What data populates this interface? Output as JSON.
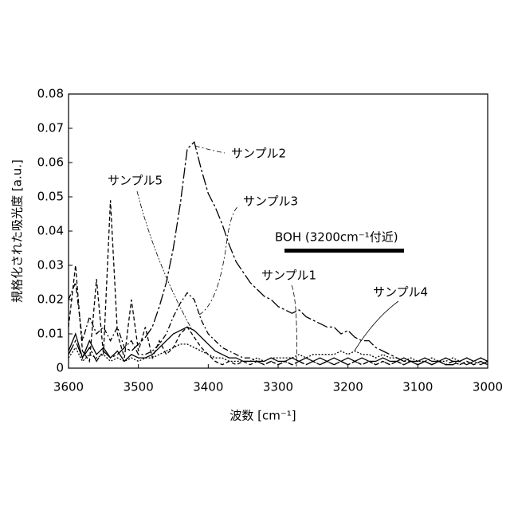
{
  "chart_data": {
    "type": "line",
    "xlabel": "波数 [cm⁻¹]",
    "ylabel": "規格化された吸光度 [a.u.]",
    "annotation": "BOH (3200cm⁻¹付近)",
    "xlim": [
      3600,
      3000
    ],
    "xticks": [
      3600,
      3500,
      3400,
      3300,
      3200,
      3100,
      3000
    ],
    "ylim": [
      0,
      0.08
    ],
    "yticks": [
      0,
      0.01,
      0.02,
      0.03,
      0.04,
      0.05,
      0.06,
      0.07,
      0.08
    ],
    "x": [
      3600,
      3590,
      3580,
      3570,
      3560,
      3550,
      3540,
      3530,
      3520,
      3510,
      3500,
      3490,
      3480,
      3470,
      3460,
      3450,
      3440,
      3430,
      3420,
      3410,
      3400,
      3390,
      3380,
      3370,
      3360,
      3350,
      3340,
      3330,
      3320,
      3310,
      3300,
      3290,
      3280,
      3270,
      3260,
      3250,
      3240,
      3230,
      3220,
      3210,
      3200,
      3190,
      3180,
      3170,
      3160,
      3150,
      3140,
      3130,
      3120,
      3110,
      3100,
      3090,
      3080,
      3070,
      3060,
      3050,
      3040,
      3030,
      3020,
      3010,
      3000
    ],
    "series": [
      {
        "name": "サンプル1",
        "color": "#000000",
        "values": [
          0.005,
          0.01,
          0.003,
          0.008,
          0.004,
          0.006,
          0.003,
          0.005,
          0.002,
          0.004,
          0.003,
          0.003,
          0.004,
          0.006,
          0.008,
          0.01,
          0.011,
          0.012,
          0.011,
          0.009,
          0.007,
          0.005,
          0.004,
          0.003,
          0.003,
          0.002,
          0.002,
          0.002,
          0.002,
          0.003,
          0.002,
          0.002,
          0.003,
          0.002,
          0.003,
          0.002,
          0.003,
          0.002,
          0.003,
          0.002,
          0.003,
          0.002,
          0.003,
          0.002,
          0.002,
          0.003,
          0.002,
          0.002,
          0.003,
          0.002,
          0.002,
          0.003,
          0.002,
          0.002,
          0.003,
          0.002,
          0.002,
          0.003,
          0.002,
          0.003,
          0.002
        ]
      },
      {
        "name": "サンプル2",
        "color": "#000000",
        "values": [
          0.004,
          0.008,
          0.003,
          0.006,
          0.002,
          0.005,
          0.003,
          0.004,
          0.006,
          0.005,
          0.007,
          0.009,
          0.012,
          0.018,
          0.025,
          0.035,
          0.048,
          0.064,
          0.066,
          0.058,
          0.051,
          0.047,
          0.042,
          0.036,
          0.031,
          0.028,
          0.025,
          0.023,
          0.021,
          0.02,
          0.018,
          0.017,
          0.016,
          0.017,
          0.015,
          0.014,
          0.013,
          0.012,
          0.012,
          0.01,
          0.011,
          0.009,
          0.008,
          0.008,
          0.006,
          0.005,
          0.004,
          0.003,
          0.002,
          0.002,
          0.001,
          0.002,
          0.001,
          0.002,
          0.001,
          0.001,
          0.002,
          0.001,
          0.002,
          0.001,
          0.002
        ]
      },
      {
        "name": "サンプル3",
        "color": "#000000",
        "values": [
          0.02,
          0.025,
          0.008,
          0.015,
          0.01,
          0.012,
          0.008,
          0.012,
          0.006,
          0.008,
          0.004,
          0.004,
          0.005,
          0.007,
          0.01,
          0.015,
          0.019,
          0.022,
          0.02,
          0.014,
          0.01,
          0.008,
          0.006,
          0.005,
          0.004,
          0.003,
          0.003,
          0.002,
          0.001,
          0.002,
          0.001,
          0.002,
          0.001,
          0.002,
          0.001,
          0.002,
          0.001,
          0.002,
          0.001,
          0.002,
          0.001,
          0.002,
          0.001,
          0.002,
          0.001,
          0.002,
          0.001,
          0.002,
          0.001,
          0.002,
          0.001,
          0.002,
          0.001,
          0.002,
          0.001,
          0.002,
          0.001,
          0.002,
          0.001,
          0.002,
          0.001
        ]
      },
      {
        "name": "サンプル4",
        "color": "#000000",
        "values": [
          0.003,
          0.006,
          0.002,
          0.004,
          0.003,
          0.004,
          0.002,
          0.003,
          0.002,
          0.003,
          0.002,
          0.003,
          0.003,
          0.004,
          0.005,
          0.006,
          0.007,
          0.007,
          0.006,
          0.005,
          0.004,
          0.003,
          0.003,
          0.002,
          0.002,
          0.002,
          0.002,
          0.003,
          0.002,
          0.003,
          0.003,
          0.003,
          0.003,
          0.004,
          0.003,
          0.004,
          0.004,
          0.004,
          0.004,
          0.005,
          0.004,
          0.005,
          0.004,
          0.004,
          0.003,
          0.004,
          0.003,
          0.003,
          0.002,
          0.003,
          0.002,
          0.002,
          0.003,
          0.002,
          0.002,
          0.003,
          0.002,
          0.003,
          0.002,
          0.003,
          0.002
        ]
      },
      {
        "name": "サンプル5",
        "color": "#000000",
        "values": [
          0.012,
          0.03,
          0.005,
          0.002,
          0.026,
          0.004,
          0.049,
          0.01,
          0.003,
          0.02,
          0.005,
          0.012,
          0.003,
          0.008,
          0.004,
          0.006,
          0.01,
          0.012,
          0.009,
          0.006,
          0.004,
          0.002,
          0.001,
          0.002,
          0.001,
          0.002,
          0.001,
          0.002,
          0.001,
          0.002,
          0.001,
          0.002,
          0.001,
          0.002,
          0.001,
          0.002,
          0.001,
          0.002,
          0.001,
          0.002,
          0.001,
          0.002,
          0.001,
          0.002,
          0.001,
          0.002,
          0.001,
          0.002,
          0.001,
          0.002,
          0.001,
          0.002,
          0.001,
          0.002,
          0.001,
          0.002,
          0.001,
          0.002,
          0.001,
          0.002,
          0.001
        ]
      }
    ]
  }
}
